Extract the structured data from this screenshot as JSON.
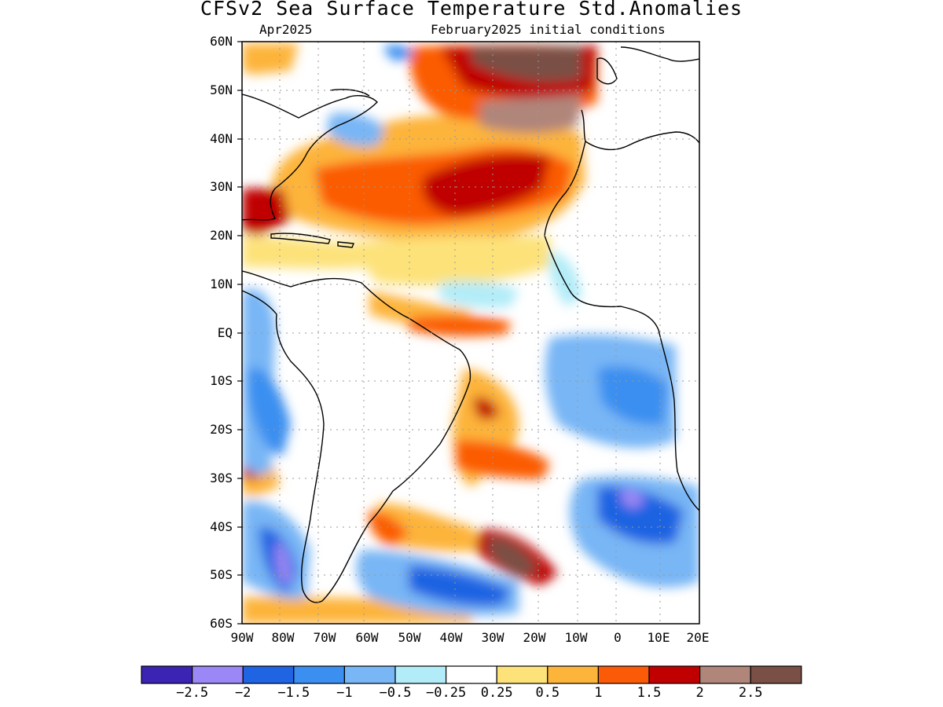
{
  "title": "CFSv2 Sea Surface Temperature Std.Anomalies",
  "subtitle_left": "Apr2025",
  "subtitle_right": "February2025 initial conditions",
  "y_ticks": [
    "60N",
    "50N",
    "40N",
    "30N",
    "20N",
    "10N",
    "EQ",
    "10S",
    "20S",
    "30S",
    "40S",
    "50S",
    "60S"
  ],
  "x_ticks": [
    "90W",
    "80W",
    "70W",
    "60W",
    "50W",
    "40W",
    "30W",
    "20W",
    "10W",
    "0",
    "10E",
    "20E"
  ],
  "colorbar": {
    "colors": [
      "#3b23b4",
      "#9b87f5",
      "#1f64e2",
      "#3b8ff0",
      "#78b6f5",
      "#b2ecf8",
      "#ffffff",
      "#fde27a",
      "#fdb43a",
      "#fb5b06",
      "#c00000",
      "#b0857a",
      "#7a4f45"
    ],
    "labels": [
      "−2.5",
      "−2",
      "−1.5",
      "−1",
      "−0.5",
      "−0.25",
      "0.25",
      "0.5",
      "1",
      "1.5",
      "2",
      "2.5"
    ]
  }
}
